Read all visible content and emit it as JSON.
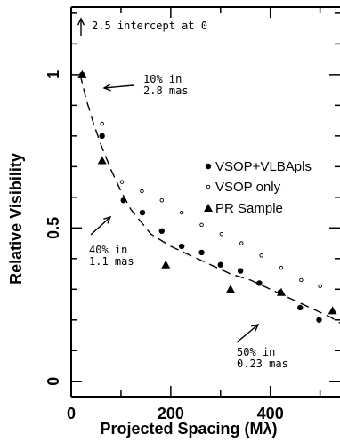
{
  "chart_data": {
    "type": "scatter",
    "title": "",
    "xlabel": "Projected Spacing (Mλ)",
    "ylabel": "Relative Visibility",
    "xlim": [
      0,
      540
    ],
    "ylim": [
      -0.05,
      1.22
    ],
    "x_ticks": [
      "0",
      "200",
      "400"
    ],
    "y_ticks": [
      "0",
      "0.5",
      "1"
    ],
    "grid": false,
    "legend_position": "right-middle",
    "series": [
      {
        "name": "VSOP+VLBApls",
        "marker": "filled-circle",
        "points": [
          [
            22,
            1.0
          ],
          [
            62,
            0.8
          ],
          [
            105,
            0.59
          ],
          [
            143,
            0.55
          ],
          [
            182,
            0.49
          ],
          [
            222,
            0.44
          ],
          [
            262,
            0.42
          ],
          [
            300,
            0.38
          ],
          [
            340,
            0.36
          ],
          [
            378,
            0.32
          ],
          [
            420,
            0.29
          ],
          [
            460,
            0.24
          ],
          [
            498,
            0.2
          ]
        ]
      },
      {
        "name": "VSOP only",
        "marker": "open-circle",
        "points": [
          [
            62,
            0.84
          ],
          [
            102,
            0.65
          ],
          [
            142,
            0.62
          ],
          [
            182,
            0.59
          ],
          [
            222,
            0.55
          ],
          [
            262,
            0.51
          ],
          [
            302,
            0.48
          ],
          [
            342,
            0.45
          ],
          [
            382,
            0.41
          ],
          [
            422,
            0.37
          ],
          [
            462,
            0.33
          ],
          [
            500,
            0.31
          ]
        ]
      },
      {
        "name": "PR Sample",
        "marker": "triangle",
        "points": [
          [
            22,
            1.0
          ],
          [
            62,
            0.72
          ],
          [
            190,
            0.38
          ],
          [
            320,
            0.3
          ],
          [
            422,
            0.29
          ],
          [
            525,
            0.23
          ]
        ]
      }
    ],
    "fit_curve": {
      "style": "dashed",
      "points": [
        [
          18,
          1.0
        ],
        [
          30,
          0.92
        ],
        [
          45,
          0.84
        ],
        [
          60,
          0.77
        ],
        [
          80,
          0.69
        ],
        [
          100,
          0.62
        ],
        [
          120,
          0.56
        ],
        [
          140,
          0.52
        ],
        [
          160,
          0.48
        ],
        [
          180,
          0.46
        ],
        [
          200,
          0.44
        ],
        [
          240,
          0.41
        ],
        [
          280,
          0.38
        ],
        [
          320,
          0.35
        ],
        [
          360,
          0.33
        ],
        [
          400,
          0.3
        ],
        [
          440,
          0.27
        ],
        [
          480,
          0.24
        ],
        [
          520,
          0.21
        ],
        [
          540,
          0.19
        ]
      ]
    },
    "annotations": [
      {
        "id": "intercept",
        "lines": [
          "2.5 intercept at 0"
        ]
      },
      {
        "id": "a10",
        "lines": [
          "10% in",
          "2.8 mas"
        ]
      },
      {
        "id": "a40",
        "lines": [
          "40% in",
          "1.1 mas"
        ]
      },
      {
        "id": "a50",
        "lines": [
          "50% in",
          "0.23 mas"
        ]
      }
    ]
  }
}
